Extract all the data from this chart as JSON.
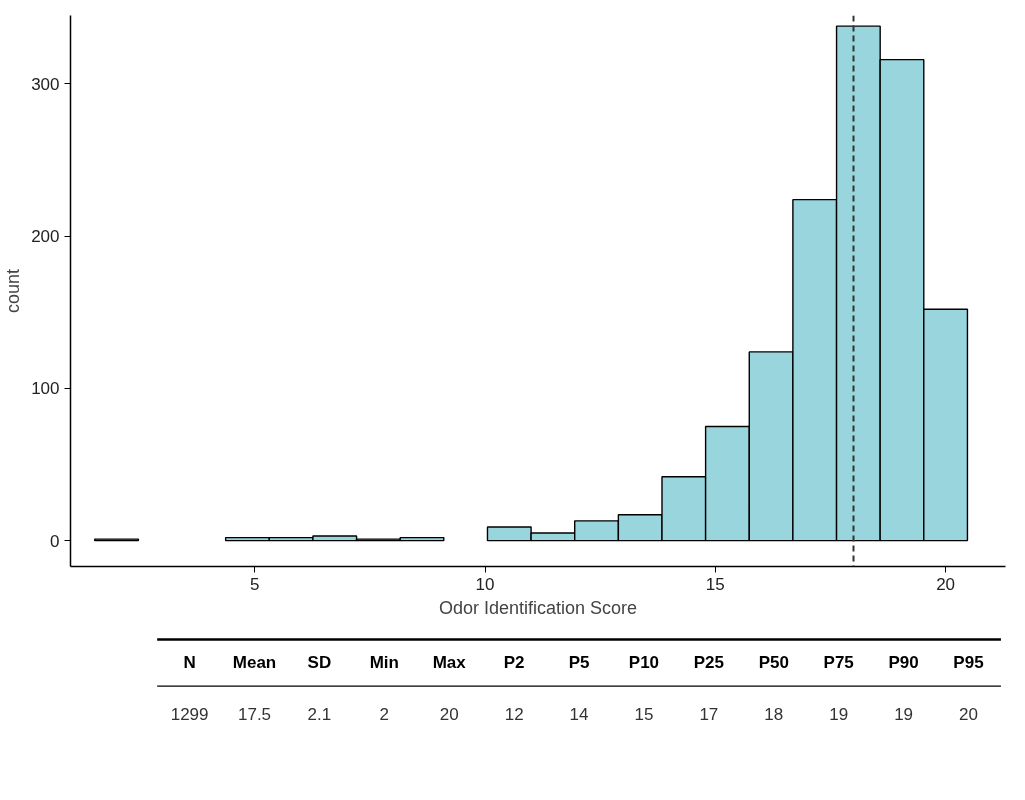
{
  "chart_data": {
    "type": "histogram",
    "xlabel": "Odor Identification Score",
    "ylabel": "count",
    "bins": [
      1.526,
      2.474,
      3.421,
      4.368,
      5.316,
      6.263,
      7.211,
      8.158,
      9.105,
      10.053,
      11.0,
      11.947,
      12.895,
      13.842,
      14.789,
      15.737,
      16.684,
      17.632,
      18.579,
      19.526,
      20.474
    ],
    "values": [
      1,
      0,
      0,
      2,
      2,
      3,
      1,
      2,
      0,
      9,
      5,
      13,
      17,
      42,
      75,
      124,
      224,
      338,
      316,
      152
    ],
    "color": "#99d5dd",
    "xlim": [
      1.0,
      21.3
    ],
    "ylim": [
      -17,
      345
    ],
    "xticks": [
      5,
      10,
      15,
      20
    ],
    "yticks": [
      0,
      100,
      200,
      300
    ],
    "grid": false,
    "ref_lines": [
      {
        "axis": "x",
        "value": 18,
        "line_style": "dashed",
        "color": "#333333"
      }
    ],
    "annotations": [
      "N",
      "Mean",
      "SD",
      "Min",
      "Max",
      "P2",
      "P5",
      "P10",
      "P25",
      "P50",
      "P75",
      "P90",
      "P95",
      "1299",
      "17.5",
      "2.1",
      "2",
      "20",
      "12",
      "14",
      "15",
      "17",
      "18",
      "19",
      "19",
      "20"
    ]
  }
}
